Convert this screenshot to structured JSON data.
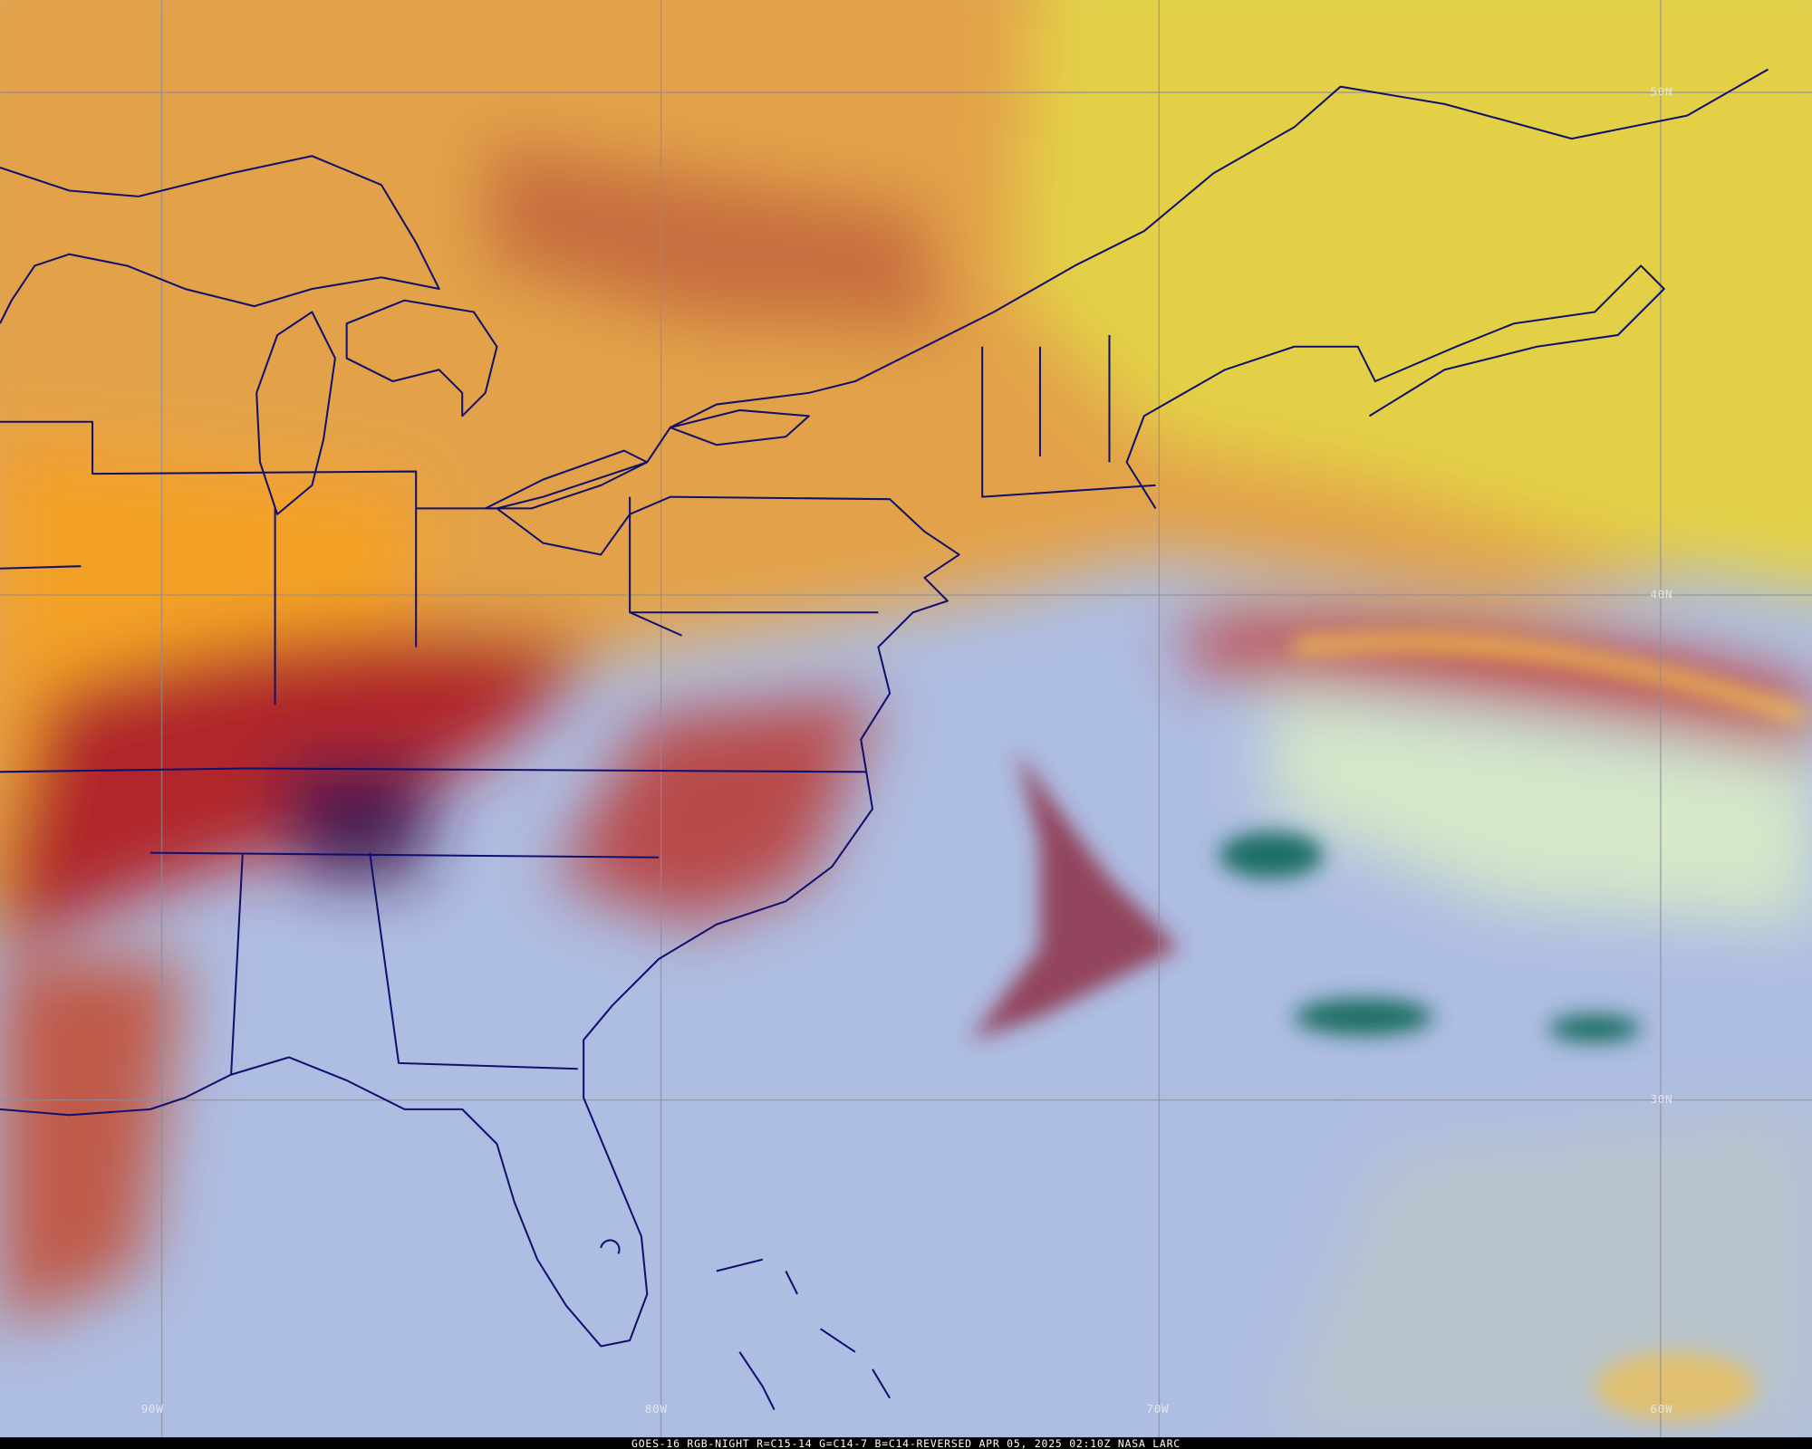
{
  "image": {
    "latitude_labels": [
      "50N",
      "40N",
      "30N"
    ],
    "longitude_labels": [
      "90W",
      "80W",
      "70W",
      "60W"
    ],
    "footer": "GOES-16 RGB-NIGHT   R=C15-14 G=C14-7 B=C14-REVERSED   APR 05, 2025 02:10Z NASA LARC"
  }
}
